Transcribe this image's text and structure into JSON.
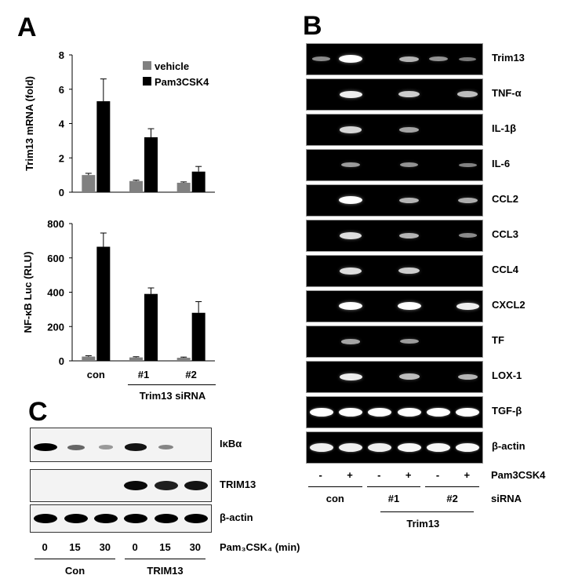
{
  "panels": {
    "a": "A",
    "b": "B",
    "c": "C"
  },
  "legend": {
    "vehicle": "vehicle",
    "pam": "Pam3CSK4",
    "vehicle_color": "#808080",
    "pam_color": "#000000"
  },
  "chart_data": [
    {
      "type": "bar",
      "ylabel": "Trim13 mRNA (fold)",
      "ylim": [
        0,
        8
      ],
      "yticks": [
        "0",
        "2",
        "4",
        "6",
        "8"
      ],
      "categories": [
        "con",
        "#1",
        "#2"
      ],
      "series": [
        {
          "name": "vehicle",
          "values": [
            1.0,
            0.65,
            0.55
          ],
          "errors": [
            0.1,
            0.05,
            0.05
          ]
        },
        {
          "name": "Pam3CSK4",
          "values": [
            5.3,
            3.2,
            1.2
          ],
          "errors": [
            1.3,
            0.5,
            0.3
          ]
        }
      ]
    },
    {
      "type": "bar",
      "ylabel": "NF-κB Luc (RLU)",
      "ylim": [
        0,
        800
      ],
      "yticks": [
        "0",
        "200",
        "400",
        "600",
        "800"
      ],
      "categories": [
        "con",
        "#1",
        "#2"
      ],
      "series": [
        {
          "name": "vehicle",
          "values": [
            25,
            20,
            18
          ],
          "errors": [
            5,
            4,
            4
          ]
        },
        {
          "name": "Pam3CSK4",
          "values": [
            665,
            390,
            280
          ],
          "errors": [
            80,
            35,
            65
          ]
        }
      ]
    }
  ],
  "panel_a_group_label": "Trim13 siRNA",
  "gel": {
    "genes": [
      "Trim13",
      "TNF-α",
      "IL-1β",
      "IL-6",
      "CCL2",
      "CCL3",
      "CCL4",
      "CXCL2",
      "TF",
      "LOX-1",
      "TGF-β",
      "β-actin"
    ],
    "intensity": [
      [
        0.3,
        1.0,
        0.0,
        0.55,
        0.35,
        0.2
      ],
      [
        0.0,
        0.9,
        0.0,
        0.7,
        0.0,
        0.6
      ],
      [
        0.0,
        0.75,
        0.0,
        0.45,
        0.0,
        0.0
      ],
      [
        0.0,
        0.4,
        0.0,
        0.35,
        0.0,
        0.25
      ],
      [
        0.0,
        1.0,
        0.0,
        0.55,
        0.0,
        0.5
      ],
      [
        0.0,
        0.8,
        0.0,
        0.55,
        0.0,
        0.3
      ],
      [
        0.0,
        0.8,
        0.0,
        0.7,
        0.0,
        0.0
      ],
      [
        0.0,
        1.0,
        0.0,
        1.0,
        0.0,
        0.9
      ],
      [
        0.0,
        0.45,
        0.0,
        0.4,
        0.0,
        0.0
      ],
      [
        0.0,
        0.9,
        0.0,
        0.6,
        0.0,
        0.55
      ],
      [
        1.0,
        1.0,
        1.0,
        1.0,
        1.0,
        1.0
      ],
      [
        0.9,
        0.9,
        0.9,
        0.95,
        0.95,
        0.95
      ]
    ],
    "pam_signs": [
      "-",
      "+",
      "-",
      "+",
      "-",
      "+"
    ],
    "pam_label": "Pam3CSK4",
    "groups": [
      "con",
      "#1",
      "#2"
    ],
    "sirna_label": "siRNA",
    "trim13_label": "Trim13"
  },
  "blot": {
    "rows": [
      "IκBα",
      "TRIM13",
      "β-actin"
    ],
    "intensity": [
      [
        1.0,
        0.5,
        0.25,
        0.9,
        0.35,
        0.0
      ],
      [
        0.0,
        0.0,
        0.0,
        0.95,
        0.85,
        0.9
      ],
      [
        1.0,
        1.0,
        1.0,
        1.0,
        1.0,
        1.0
      ]
    ],
    "times": [
      "0",
      "15",
      "30",
      "0",
      "15",
      "30"
    ],
    "time_label": "Pam₃CSK₄ (min)",
    "groups": [
      "Con",
      "TRIM13"
    ]
  }
}
